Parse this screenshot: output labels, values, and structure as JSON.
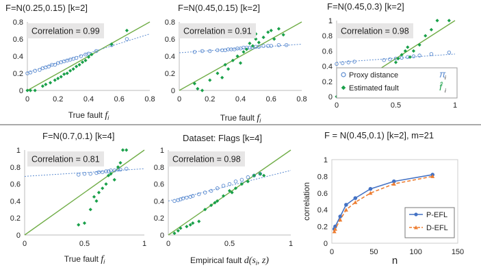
{
  "colors": {
    "proxy": "#5b8bd0",
    "fault": "#1aa04a",
    "diag": "#70ad47",
    "p_efl": "#4472c4",
    "d_efl": "#ed7d31",
    "corr_box": "#e7e6e6"
  },
  "chart_data": [
    {
      "type": "scatter",
      "title": "F=N(0.25,0.15)    [k=2]",
      "correlation_text": "Correlation = 0.99",
      "xlabel": "True fault",
      "xlabel_symbol": "f",
      "xlabel_sub": "i",
      "xlim": [
        0,
        0.8
      ],
      "ylim": [
        0,
        0.8
      ],
      "xticks": [
        "0",
        "0.2",
        "0.4",
        "0.6",
        "0.8"
      ],
      "yticks": [
        "0",
        "0.2",
        "0.4",
        "0.6",
        "0.8"
      ],
      "proxy": [
        [
          0.0,
          0.2
        ],
        [
          0.02,
          0.21
        ],
        [
          0.05,
          0.23
        ],
        [
          0.08,
          0.24
        ],
        [
          0.1,
          0.26
        ],
        [
          0.12,
          0.27
        ],
        [
          0.14,
          0.28
        ],
        [
          0.16,
          0.3
        ],
        [
          0.18,
          0.3
        ],
        [
          0.2,
          0.32
        ],
        [
          0.22,
          0.33
        ],
        [
          0.24,
          0.34
        ],
        [
          0.26,
          0.35
        ],
        [
          0.28,
          0.36
        ],
        [
          0.3,
          0.37
        ],
        [
          0.32,
          0.38
        ],
        [
          0.35,
          0.4
        ],
        [
          0.38,
          0.42
        ],
        [
          0.4,
          0.43
        ],
        [
          0.45,
          0.46
        ],
        [
          0.55,
          0.53
        ],
        [
          0.65,
          0.6
        ]
      ],
      "fault": [
        [
          0.0,
          0.0
        ],
        [
          0.02,
          0.0
        ],
        [
          0.05,
          0.0
        ],
        [
          0.1,
          0.05
        ],
        [
          0.12,
          0.07
        ],
        [
          0.15,
          0.09
        ],
        [
          0.18,
          0.12
        ],
        [
          0.2,
          0.14
        ],
        [
          0.22,
          0.16
        ],
        [
          0.24,
          0.19
        ],
        [
          0.26,
          0.2
        ],
        [
          0.28,
          0.23
        ],
        [
          0.3,
          0.25
        ],
        [
          0.32,
          0.28
        ],
        [
          0.34,
          0.3
        ],
        [
          0.36,
          0.33
        ],
        [
          0.38,
          0.35
        ],
        [
          0.4,
          0.39
        ],
        [
          0.42,
          0.42
        ],
        [
          0.55,
          0.54
        ],
        [
          0.65,
          0.7
        ]
      ],
      "proxy_trend": [
        [
          0,
          0.21
        ],
        [
          0.8,
          0.66
        ]
      ]
    },
    {
      "type": "scatter",
      "title": "F=N(0.45,0.15)    [k=2]",
      "correlation_text": "Correlation = 0.91",
      "xlabel": "True fault",
      "xlabel_symbol": "f",
      "xlabel_sub": "i",
      "xlim": [
        0,
        0.8
      ],
      "ylim": [
        0,
        0.8
      ],
      "xticks": [
        "0",
        "0.2",
        "0.4",
        "0.6",
        "0.8"
      ],
      "yticks": [
        "0",
        "0.2",
        "0.4",
        "0.6",
        "0.8"
      ],
      "proxy": [
        [
          0.1,
          0.45
        ],
        [
          0.15,
          0.46
        ],
        [
          0.2,
          0.46
        ],
        [
          0.25,
          0.47
        ],
        [
          0.28,
          0.47
        ],
        [
          0.3,
          0.47
        ],
        [
          0.32,
          0.48
        ],
        [
          0.34,
          0.48
        ],
        [
          0.36,
          0.48
        ],
        [
          0.38,
          0.49
        ],
        [
          0.4,
          0.49
        ],
        [
          0.42,
          0.5
        ],
        [
          0.44,
          0.5
        ],
        [
          0.46,
          0.5
        ],
        [
          0.48,
          0.5
        ],
        [
          0.5,
          0.51
        ],
        [
          0.52,
          0.51
        ],
        [
          0.55,
          0.52
        ],
        [
          0.58,
          0.52
        ],
        [
          0.6,
          0.52
        ],
        [
          0.65,
          0.53
        ],
        [
          0.7,
          0.53
        ]
      ],
      "fault": [
        [
          0.1,
          0.08
        ],
        [
          0.12,
          0.02
        ],
        [
          0.15,
          0.0
        ],
        [
          0.2,
          0.12
        ],
        [
          0.25,
          0.2
        ],
        [
          0.28,
          0.15
        ],
        [
          0.3,
          0.3
        ],
        [
          0.32,
          0.25
        ],
        [
          0.35,
          0.35
        ],
        [
          0.38,
          0.4
        ],
        [
          0.4,
          0.32
        ],
        [
          0.42,
          0.45
        ],
        [
          0.44,
          0.48
        ],
        [
          0.46,
          0.55
        ],
        [
          0.48,
          0.52
        ],
        [
          0.5,
          0.6
        ],
        [
          0.5,
          0.66
        ],
        [
          0.52,
          0.56
        ],
        [
          0.55,
          0.62
        ],
        [
          0.58,
          0.68
        ],
        [
          0.6,
          0.7
        ],
        [
          0.62,
          0.6
        ],
        [
          0.65,
          0.72
        ],
        [
          0.68,
          0.65
        ]
      ],
      "proxy_trend": [
        [
          0,
          0.44
        ],
        [
          0.8,
          0.54
        ]
      ]
    },
    {
      "type": "scatter",
      "title": "F=N(0.45,0.3)    [k=2]",
      "correlation_text": "Correlation = 0.98",
      "xlim": [
        0,
        1
      ],
      "ylim": [
        0,
        1
      ],
      "xticks": [
        "0",
        "0.5",
        "1"
      ],
      "yticks": [
        "0",
        "0.2",
        "0.4",
        "0.6",
        "0.8",
        "1"
      ],
      "legend": [
        {
          "label": "Proxy distance",
          "symbol": "π",
          "sub": "i"
        },
        {
          "label": "Estimated fault",
          "symbol": "f̂",
          "sub": "i"
        }
      ],
      "proxy": [
        [
          0.0,
          0.43
        ],
        [
          0.05,
          0.44
        ],
        [
          0.1,
          0.45
        ],
        [
          0.15,
          0.46
        ],
        [
          0.4,
          0.48
        ],
        [
          0.45,
          0.49
        ],
        [
          0.5,
          0.5
        ],
        [
          0.55,
          0.51
        ],
        [
          0.6,
          0.52
        ],
        [
          0.65,
          0.53
        ],
        [
          0.7,
          0.54
        ],
        [
          0.8,
          0.56
        ],
        [
          0.95,
          0.58
        ]
      ],
      "fault": [
        [
          0.0,
          0.0
        ],
        [
          0.05,
          0.05
        ],
        [
          0.1,
          0.1
        ],
        [
          0.12,
          0.12
        ],
        [
          0.35,
          0.2
        ],
        [
          0.4,
          0.35
        ],
        [
          0.45,
          0.3
        ],
        [
          0.5,
          0.45
        ],
        [
          0.52,
          0.5
        ],
        [
          0.55,
          0.55
        ],
        [
          0.58,
          0.6
        ],
        [
          0.6,
          0.65
        ],
        [
          0.62,
          0.52
        ],
        [
          0.65,
          0.6
        ],
        [
          0.7,
          0.68
        ],
        [
          0.75,
          0.8
        ],
        [
          0.8,
          0.88
        ],
        [
          0.85,
          1.0
        ],
        [
          0.95,
          1.0
        ]
      ],
      "proxy_trend": [
        [
          0,
          0.45
        ],
        [
          1,
          0.56
        ]
      ]
    },
    {
      "type": "scatter",
      "title": "F=N(0.7,0.1)    [k=4]",
      "correlation_text": "Correlation = 0.81",
      "xlabel": "True fault",
      "xlabel_symbol": "f",
      "xlabel_sub": "i",
      "xlim": [
        0,
        1
      ],
      "ylim": [
        0,
        1
      ],
      "xticks": [
        "0",
        "0.5",
        "1"
      ],
      "yticks": [
        "0",
        "0.2",
        "0.4",
        "0.6",
        "0.8",
        "1"
      ],
      "proxy": [
        [
          0.45,
          0.71
        ],
        [
          0.5,
          0.72
        ],
        [
          0.55,
          0.72
        ],
        [
          0.6,
          0.73
        ],
        [
          0.62,
          0.74
        ],
        [
          0.65,
          0.74
        ],
        [
          0.68,
          0.75
        ],
        [
          0.7,
          0.75
        ],
        [
          0.72,
          0.76
        ],
        [
          0.75,
          0.76
        ],
        [
          0.78,
          0.77
        ],
        [
          0.8,
          0.77
        ],
        [
          0.85,
          0.78
        ]
      ],
      "fault": [
        [
          0.45,
          0.12
        ],
        [
          0.5,
          0.14
        ],
        [
          0.55,
          0.3
        ],
        [
          0.58,
          0.45
        ],
        [
          0.6,
          0.4
        ],
        [
          0.62,
          0.5
        ],
        [
          0.65,
          0.55
        ],
        [
          0.68,
          0.6
        ],
        [
          0.7,
          0.7
        ],
        [
          0.72,
          0.72
        ],
        [
          0.75,
          0.65
        ],
        [
          0.78,
          0.8
        ],
        [
          0.8,
          0.85
        ],
        [
          0.82,
          1.0
        ],
        [
          0.85,
          1.0
        ]
      ],
      "proxy_trend": [
        [
          0,
          0.69
        ],
        [
          1,
          0.78
        ]
      ]
    },
    {
      "type": "scatter",
      "title": "Dataset: Flags [k=4]",
      "correlation_text": "Correlation = 0.98",
      "xlabel": "Empirical  fault",
      "xlabel_symbol": "d(s",
      "xlabel_sub": "i",
      "xlabel_tail": ", z)",
      "xlim": [
        0,
        1
      ],
      "ylim": [
        0,
        1
      ],
      "xticks": [
        "0",
        "0.5",
        "1"
      ],
      "yticks": [
        "0",
        "0.2",
        "0.4",
        "0.6",
        "0.8",
        "1"
      ],
      "proxy": [
        [
          0.05,
          0.4
        ],
        [
          0.08,
          0.41
        ],
        [
          0.1,
          0.42
        ],
        [
          0.12,
          0.43
        ],
        [
          0.15,
          0.44
        ],
        [
          0.18,
          0.45
        ],
        [
          0.2,
          0.46
        ],
        [
          0.25,
          0.48
        ],
        [
          0.3,
          0.5
        ],
        [
          0.35,
          0.52
        ],
        [
          0.4,
          0.55
        ],
        [
          0.45,
          0.58
        ],
        [
          0.5,
          0.6
        ],
        [
          0.55,
          0.63
        ],
        [
          0.6,
          0.65
        ],
        [
          0.65,
          0.68
        ],
        [
          0.7,
          0.7
        ],
        [
          0.75,
          0.72
        ]
      ],
      "fault": [
        [
          0.05,
          0.02
        ],
        [
          0.08,
          0.05
        ],
        [
          0.1,
          0.08
        ],
        [
          0.15,
          0.1
        ],
        [
          0.18,
          0.12
        ],
        [
          0.2,
          0.14
        ],
        [
          0.25,
          0.16
        ],
        [
          0.3,
          0.3
        ],
        [
          0.35,
          0.35
        ],
        [
          0.38,
          0.38
        ],
        [
          0.4,
          0.4
        ],
        [
          0.45,
          0.46
        ],
        [
          0.5,
          0.52
        ],
        [
          0.52,
          0.5
        ],
        [
          0.55,
          0.55
        ],
        [
          0.6,
          0.6
        ],
        [
          0.65,
          0.63
        ],
        [
          0.7,
          0.7
        ],
        [
          0.75,
          0.72
        ],
        [
          0.78,
          0.7
        ]
      ],
      "proxy_trend": [
        [
          0,
          0.4
        ],
        [
          1,
          0.76
        ]
      ]
    },
    {
      "type": "line",
      "title": "F = N(0.45,0.1)      [k=2], m=21",
      "xlabel": "n",
      "ylabel": "correlation",
      "xlim": [
        0,
        150
      ],
      "ylim": [
        0,
        1
      ],
      "xticks": [
        "0",
        "50",
        "100",
        "150"
      ],
      "yticks": [
        "0",
        "0.2",
        "0.4",
        "0.6",
        "0.8",
        "1"
      ],
      "x": [
        3,
        4,
        10,
        17,
        28,
        46,
        74,
        120
      ],
      "series": [
        {
          "name": "P-EFL",
          "values": [
            0.17,
            0.2,
            0.32,
            0.46,
            0.54,
            0.65,
            0.74,
            0.82
          ]
        },
        {
          "name": "D-EFL",
          "values": [
            0.14,
            0.17,
            0.28,
            0.4,
            0.49,
            0.6,
            0.71,
            0.8
          ]
        }
      ]
    }
  ]
}
